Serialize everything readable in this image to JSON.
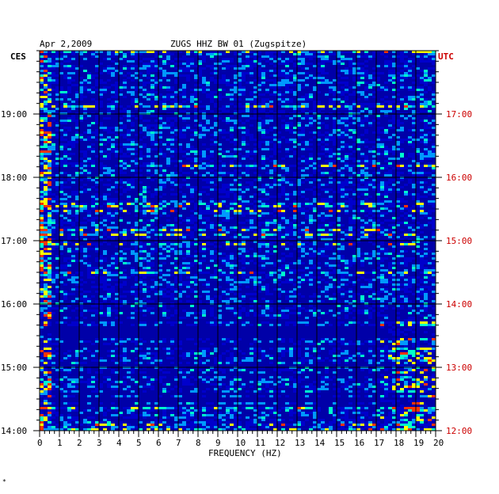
{
  "header": {
    "date": "Apr 2,2009",
    "station": "ZUGS HHZ BW 01 (Zugspitze)",
    "left_tz": "CES",
    "right_tz": "UTC"
  },
  "chart_data": {
    "type": "heatmap",
    "title": "ZUGS HHZ BW 01 (Zugspitze)",
    "xlabel": "FREQUENCY (HZ)",
    "xlim": [
      0,
      20
    ],
    "x_ticks": [
      "0",
      "1",
      "2",
      "3",
      "4",
      "5",
      "6",
      "7",
      "8",
      "9",
      "10",
      "11",
      "12",
      "13",
      "14",
      "15",
      "16",
      "17",
      "18",
      "19",
      "20"
    ],
    "left_ticks": [
      "19:00",
      "18:00",
      "17:00",
      "16:00",
      "15:00",
      "14:00"
    ],
    "right_ticks": [
      "17:00",
      "16:00",
      "15:00",
      "14:00",
      "13:00",
      "12:00"
    ],
    "colors": {
      "background": "#0000a8",
      "low": "#0000cc",
      "mid": "#0099ff",
      "high": "#00ffcc",
      "peak": "#ffff00",
      "hot": "#ff3300",
      "right_axis": "#cc0000"
    }
  },
  "footer": {
    "mark": "*"
  }
}
